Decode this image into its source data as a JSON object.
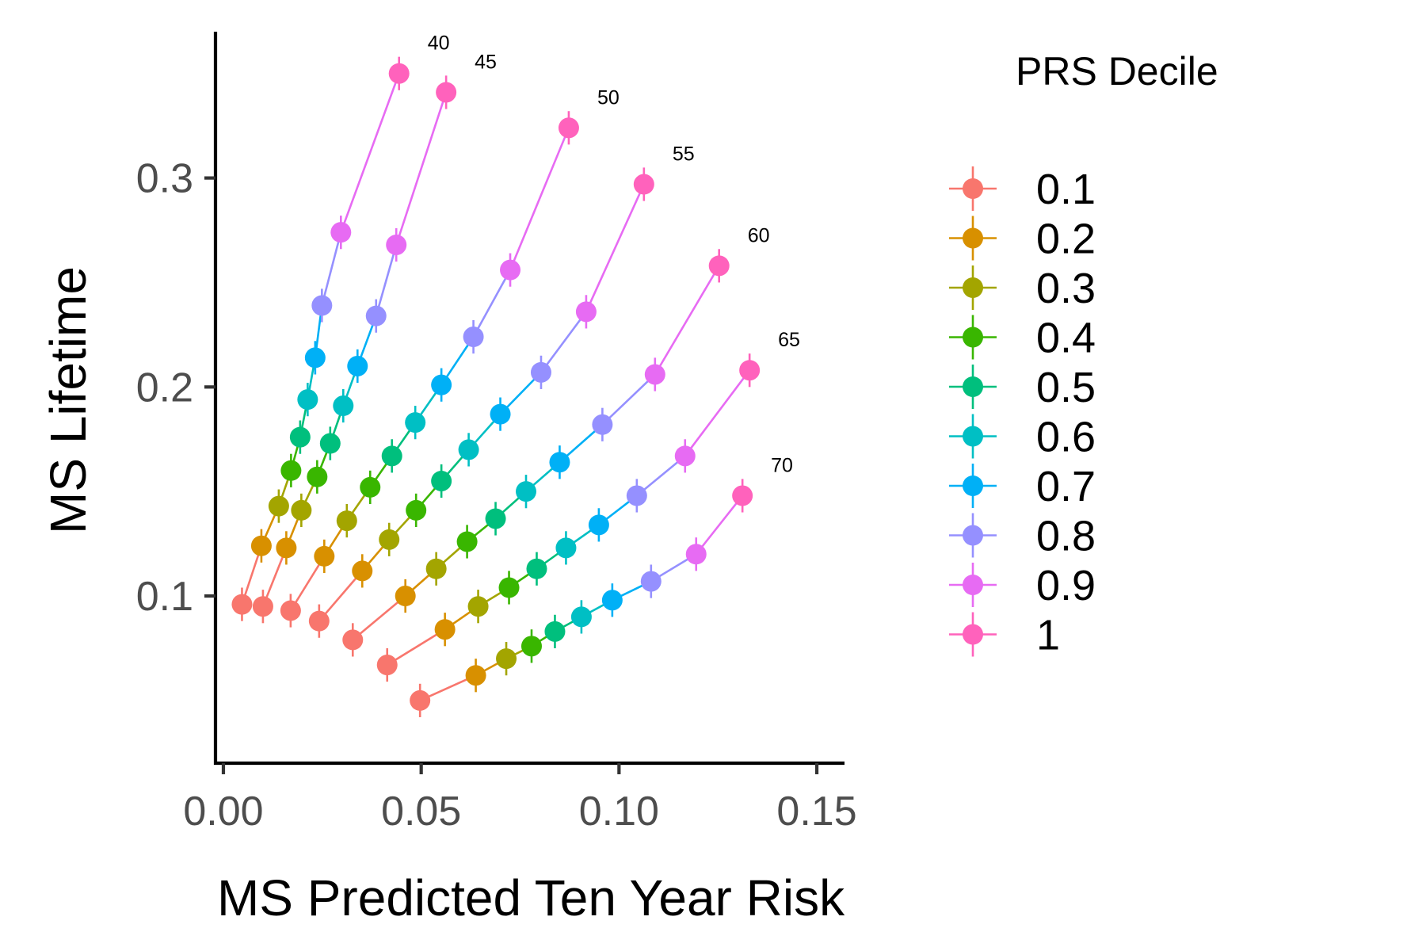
{
  "chart_data": {
    "type": "scatter",
    "xlabel": "MS Predicted Ten Year Risk",
    "ylabel": "MS Lifetime",
    "xlim": [
      -0.002,
      0.157
    ],
    "ylim": [
      0.02,
      0.37
    ],
    "x_ticks": [
      {
        "value": 0.0,
        "label": "0.00"
      },
      {
        "value": 0.05,
        "label": "0.05"
      },
      {
        "value": 0.1,
        "label": "0.10"
      },
      {
        "value": 0.15,
        "label": "0.15"
      }
    ],
    "y_ticks": [
      {
        "value": 0.1,
        "label": "0.1"
      },
      {
        "value": 0.2,
        "label": "0.2"
      },
      {
        "value": 0.3,
        "label": "0.3"
      }
    ],
    "grid": false,
    "legend": {
      "title": "PRS Decile",
      "placement": "right",
      "entries": [
        "0.1",
        "0.2",
        "0.3",
        "0.4",
        "0.5",
        "0.6",
        "0.7",
        "0.8",
        "0.9",
        "1"
      ]
    },
    "decile_colors": [
      "#F8766D",
      "#D89000",
      "#A3A500",
      "#39B600",
      "#00BF7D",
      "#00BFC4",
      "#00B0F6",
      "#9590FF",
      "#E76BF3",
      "#FF62BC"
    ],
    "error_halfwidth": 0.008,
    "series": [
      {
        "age_label": "40",
        "x": [
          0.0047,
          0.0096,
          0.014,
          0.0171,
          0.0194,
          0.0213,
          0.0232,
          0.0249,
          0.0297,
          0.0444
        ],
        "y": [
          0.096,
          0.124,
          0.143,
          0.16,
          0.176,
          0.194,
          0.214,
          0.239,
          0.274,
          0.35
        ]
      },
      {
        "age_label": "45",
        "x": [
          0.01,
          0.0159,
          0.0197,
          0.0237,
          0.027,
          0.0303,
          0.0339,
          0.0386,
          0.0437,
          0.0563
        ],
        "y": [
          0.095,
          0.123,
          0.141,
          0.157,
          0.173,
          0.191,
          0.21,
          0.234,
          0.268,
          0.341
        ]
      },
      {
        "age_label": "50",
        "x": [
          0.017,
          0.0255,
          0.0312,
          0.0371,
          0.0426,
          0.0485,
          0.0551,
          0.0632,
          0.0725,
          0.0873
        ],
        "y": [
          0.093,
          0.119,
          0.136,
          0.152,
          0.167,
          0.183,
          0.201,
          0.224,
          0.256,
          0.324
        ]
      },
      {
        "age_label": "55",
        "x": [
          0.0242,
          0.0351,
          0.0419,
          0.0487,
          0.0551,
          0.062,
          0.07,
          0.0803,
          0.0917,
          0.1063
        ],
        "y": [
          0.088,
          0.112,
          0.127,
          0.141,
          0.155,
          0.17,
          0.187,
          0.207,
          0.236,
          0.297
        ]
      },
      {
        "age_label": "60",
        "x": [
          0.0327,
          0.046,
          0.0538,
          0.0616,
          0.0688,
          0.0765,
          0.085,
          0.0958,
          0.1091,
          0.1253
        ],
        "y": [
          0.079,
          0.1,
          0.113,
          0.126,
          0.137,
          0.15,
          0.164,
          0.182,
          0.206,
          0.258
        ]
      },
      {
        "age_label": "65",
        "x": [
          0.0414,
          0.056,
          0.0644,
          0.0722,
          0.0792,
          0.0866,
          0.0949,
          0.1045,
          0.1167,
          0.133
        ],
        "y": [
          0.067,
          0.084,
          0.095,
          0.104,
          0.113,
          0.123,
          0.134,
          0.148,
          0.167,
          0.208
        ]
      },
      {
        "age_label": "70",
        "x": [
          0.0497,
          0.0638,
          0.0715,
          0.0779,
          0.0838,
          0.0905,
          0.0983,
          0.1081,
          0.1195,
          0.1312
        ],
        "y": [
          0.05,
          0.062,
          0.07,
          0.076,
          0.083,
          0.09,
          0.098,
          0.107,
          0.12,
          0.148
        ]
      }
    ]
  }
}
